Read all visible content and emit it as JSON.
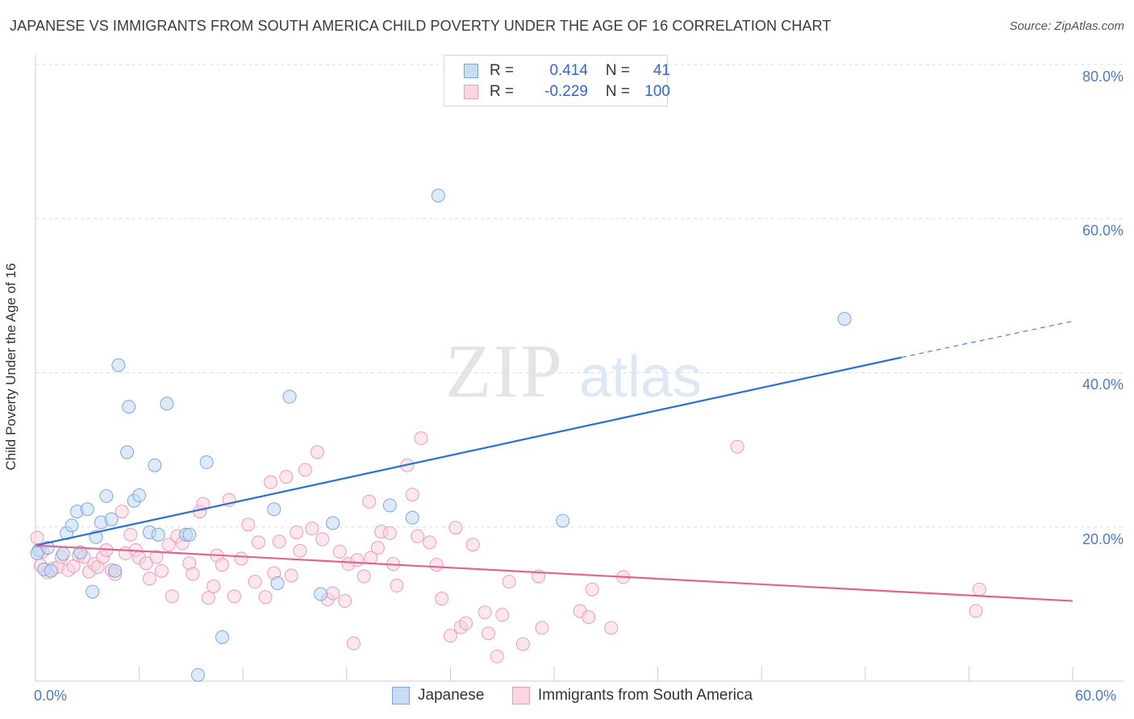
{
  "title": "JAPANESE VS IMMIGRANTS FROM SOUTH AMERICA CHILD POVERTY UNDER THE AGE OF 16 CORRELATION CHART",
  "source": "Source: ZipAtlas.com",
  "watermark": {
    "zip": "ZIP",
    "atlas": "atlas"
  },
  "legend": {
    "rows": [
      {
        "r_label": "R =",
        "r_value": "0.414",
        "n_label": "N =",
        "n_value": "41",
        "color": "#a8c6f0",
        "border": "#7aa7e0"
      },
      {
        "r_label": "R =",
        "r_value": "-0.229",
        "n_label": "N =",
        "n_value": "100",
        "color": "#f8c3d3",
        "border": "#f09ab5"
      }
    ]
  },
  "bottom_legend": {
    "series1": "Japanese",
    "series2": "Immigrants from South America"
  },
  "y_tick_labels": [
    "20.0%",
    "40.0%",
    "60.0%",
    "80.0%"
  ],
  "x_tick_labels": {
    "min": "0.0%",
    "max": "60.0%"
  },
  "chart_data": {
    "type": "scatter",
    "title": "JAPANESE VS IMMIGRANTS FROM SOUTH AMERICA CHILD POVERTY UNDER THE AGE OF 16 CORRELATION CHART",
    "xlabel": "",
    "ylabel": "Child Poverty Under the Age of 16",
    "xlim": [
      0,
      60
    ],
    "ylim": [
      0,
      80
    ],
    "colors": {
      "japanese": "#7aa7e0",
      "japanese_line": "#2a6fd4",
      "south_america": "#f09ab5",
      "south_america_line": "#e0648f"
    },
    "series": [
      {
        "name": "Japanese",
        "R": 0.414,
        "N": 41,
        "trend": {
          "x": [
            0,
            50.1
          ],
          "y": [
            17.6,
            42.0
          ],
          "dashed_to": [
            60,
            46.7
          ]
        },
        "points": [
          [
            0.2,
            17.0
          ],
          [
            0.5,
            14.5
          ],
          [
            0.7,
            17.3
          ],
          [
            0.9,
            14.3
          ],
          [
            1.6,
            16.5
          ],
          [
            1.8,
            19.2
          ],
          [
            2.1,
            20.2
          ],
          [
            2.4,
            22.0
          ],
          [
            2.6,
            16.7
          ],
          [
            3.0,
            22.3
          ],
          [
            3.3,
            11.6
          ],
          [
            3.5,
            18.7
          ],
          [
            3.8,
            20.6
          ],
          [
            4.1,
            24.0
          ],
          [
            4.4,
            21.0
          ],
          [
            4.6,
            14.3
          ],
          [
            4.8,
            41.0
          ],
          [
            5.3,
            29.7
          ],
          [
            5.4,
            35.6
          ],
          [
            5.7,
            23.4
          ],
          [
            6.0,
            24.1
          ],
          [
            6.6,
            19.3
          ],
          [
            6.9,
            28.0
          ],
          [
            7.1,
            19.0
          ],
          [
            7.6,
            36.0
          ],
          [
            8.7,
            19.0
          ],
          [
            8.9,
            19.0
          ],
          [
            9.4,
            0.8
          ],
          [
            9.9,
            28.4
          ],
          [
            10.8,
            5.7
          ],
          [
            13.8,
            22.3
          ],
          [
            14.0,
            12.7
          ],
          [
            14.7,
            36.9
          ],
          [
            16.5,
            11.3
          ],
          [
            17.2,
            20.5
          ],
          [
            20.5,
            22.8
          ],
          [
            21.8,
            21.2
          ],
          [
            23.3,
            63.0
          ],
          [
            30.5,
            20.8
          ],
          [
            46.8,
            47.0
          ],
          [
            0.1,
            16.6
          ]
        ]
      },
      {
        "name": "Immigrants from South America",
        "R": -0.229,
        "N": 100,
        "trend": {
          "x": [
            0,
            60
          ],
          "y": [
            17.6,
            10.4
          ]
        },
        "points": [
          [
            0.1,
            18.6
          ],
          [
            0.4,
            16.8
          ],
          [
            0.7,
            14.1
          ],
          [
            1.0,
            14.6
          ],
          [
            1.3,
            14.8
          ],
          [
            1.5,
            16.1
          ],
          [
            1.9,
            14.4
          ],
          [
            2.2,
            14.9
          ],
          [
            2.5,
            16.3
          ],
          [
            2.8,
            16.1
          ],
          [
            3.1,
            14.2
          ],
          [
            3.4,
            15.2
          ],
          [
            3.6,
            14.8
          ],
          [
            3.9,
            16.1
          ],
          [
            4.1,
            17.0
          ],
          [
            4.4,
            14.4
          ],
          [
            4.6,
            13.9
          ],
          [
            5.0,
            22.0
          ],
          [
            5.2,
            16.6
          ],
          [
            5.5,
            19.0
          ],
          [
            5.8,
            17.0
          ],
          [
            6.0,
            16.0
          ],
          [
            6.4,
            15.3
          ],
          [
            6.6,
            13.3
          ],
          [
            7.0,
            16.1
          ],
          [
            7.3,
            14.3
          ],
          [
            7.7,
            17.7
          ],
          [
            7.9,
            11.0
          ],
          [
            8.2,
            18.8
          ],
          [
            8.5,
            17.9
          ],
          [
            8.9,
            15.3
          ],
          [
            9.1,
            13.9
          ],
          [
            9.5,
            22.0
          ],
          [
            9.7,
            23.0
          ],
          [
            10.0,
            10.8
          ],
          [
            10.3,
            12.3
          ],
          [
            10.5,
            16.3
          ],
          [
            10.8,
            15.1
          ],
          [
            11.2,
            23.5
          ],
          [
            11.5,
            11.0
          ],
          [
            11.9,
            15.9
          ],
          [
            12.3,
            20.3
          ],
          [
            12.7,
            12.9
          ],
          [
            12.9,
            18.0
          ],
          [
            13.3,
            10.9
          ],
          [
            13.6,
            25.8
          ],
          [
            13.8,
            14.0
          ],
          [
            14.1,
            18.1
          ],
          [
            14.5,
            26.5
          ],
          [
            14.8,
            13.7
          ],
          [
            15.1,
            19.3
          ],
          [
            15.3,
            16.9
          ],
          [
            15.6,
            27.4
          ],
          [
            16.0,
            19.8
          ],
          [
            16.3,
            29.7
          ],
          [
            16.6,
            18.4
          ],
          [
            16.9,
            10.6
          ],
          [
            17.2,
            11.4
          ],
          [
            17.6,
            16.8
          ],
          [
            17.9,
            10.4
          ],
          [
            18.1,
            15.2
          ],
          [
            18.4,
            4.9
          ],
          [
            18.6,
            15.7
          ],
          [
            19.0,
            13.6
          ],
          [
            19.3,
            23.3
          ],
          [
            19.4,
            16.0
          ],
          [
            19.8,
            17.3
          ],
          [
            20.0,
            19.4
          ],
          [
            20.5,
            19.2
          ],
          [
            20.7,
            15.2
          ],
          [
            20.9,
            12.4
          ],
          [
            21.5,
            28.0
          ],
          [
            21.8,
            24.2
          ],
          [
            22.1,
            18.8
          ],
          [
            22.3,
            31.5
          ],
          [
            22.8,
            18.0
          ],
          [
            23.2,
            15.1
          ],
          [
            23.5,
            10.7
          ],
          [
            24.0,
            5.9
          ],
          [
            24.3,
            19.9
          ],
          [
            24.6,
            7.0
          ],
          [
            24.9,
            7.5
          ],
          [
            25.3,
            17.7
          ],
          [
            26.0,
            8.9
          ],
          [
            26.2,
            6.2
          ],
          [
            26.7,
            3.2
          ],
          [
            27.0,
            8.6
          ],
          [
            27.4,
            12.9
          ],
          [
            28.2,
            4.8
          ],
          [
            29.1,
            13.6
          ],
          [
            29.3,
            6.9
          ],
          [
            31.5,
            9.1
          ],
          [
            32.0,
            8.3
          ],
          [
            32.2,
            11.9
          ],
          [
            33.3,
            6.9
          ],
          [
            34.0,
            13.5
          ],
          [
            40.6,
            30.4
          ],
          [
            54.4,
            9.1
          ],
          [
            54.6,
            11.9
          ],
          [
            0.3,
            15.0
          ]
        ]
      }
    ]
  }
}
